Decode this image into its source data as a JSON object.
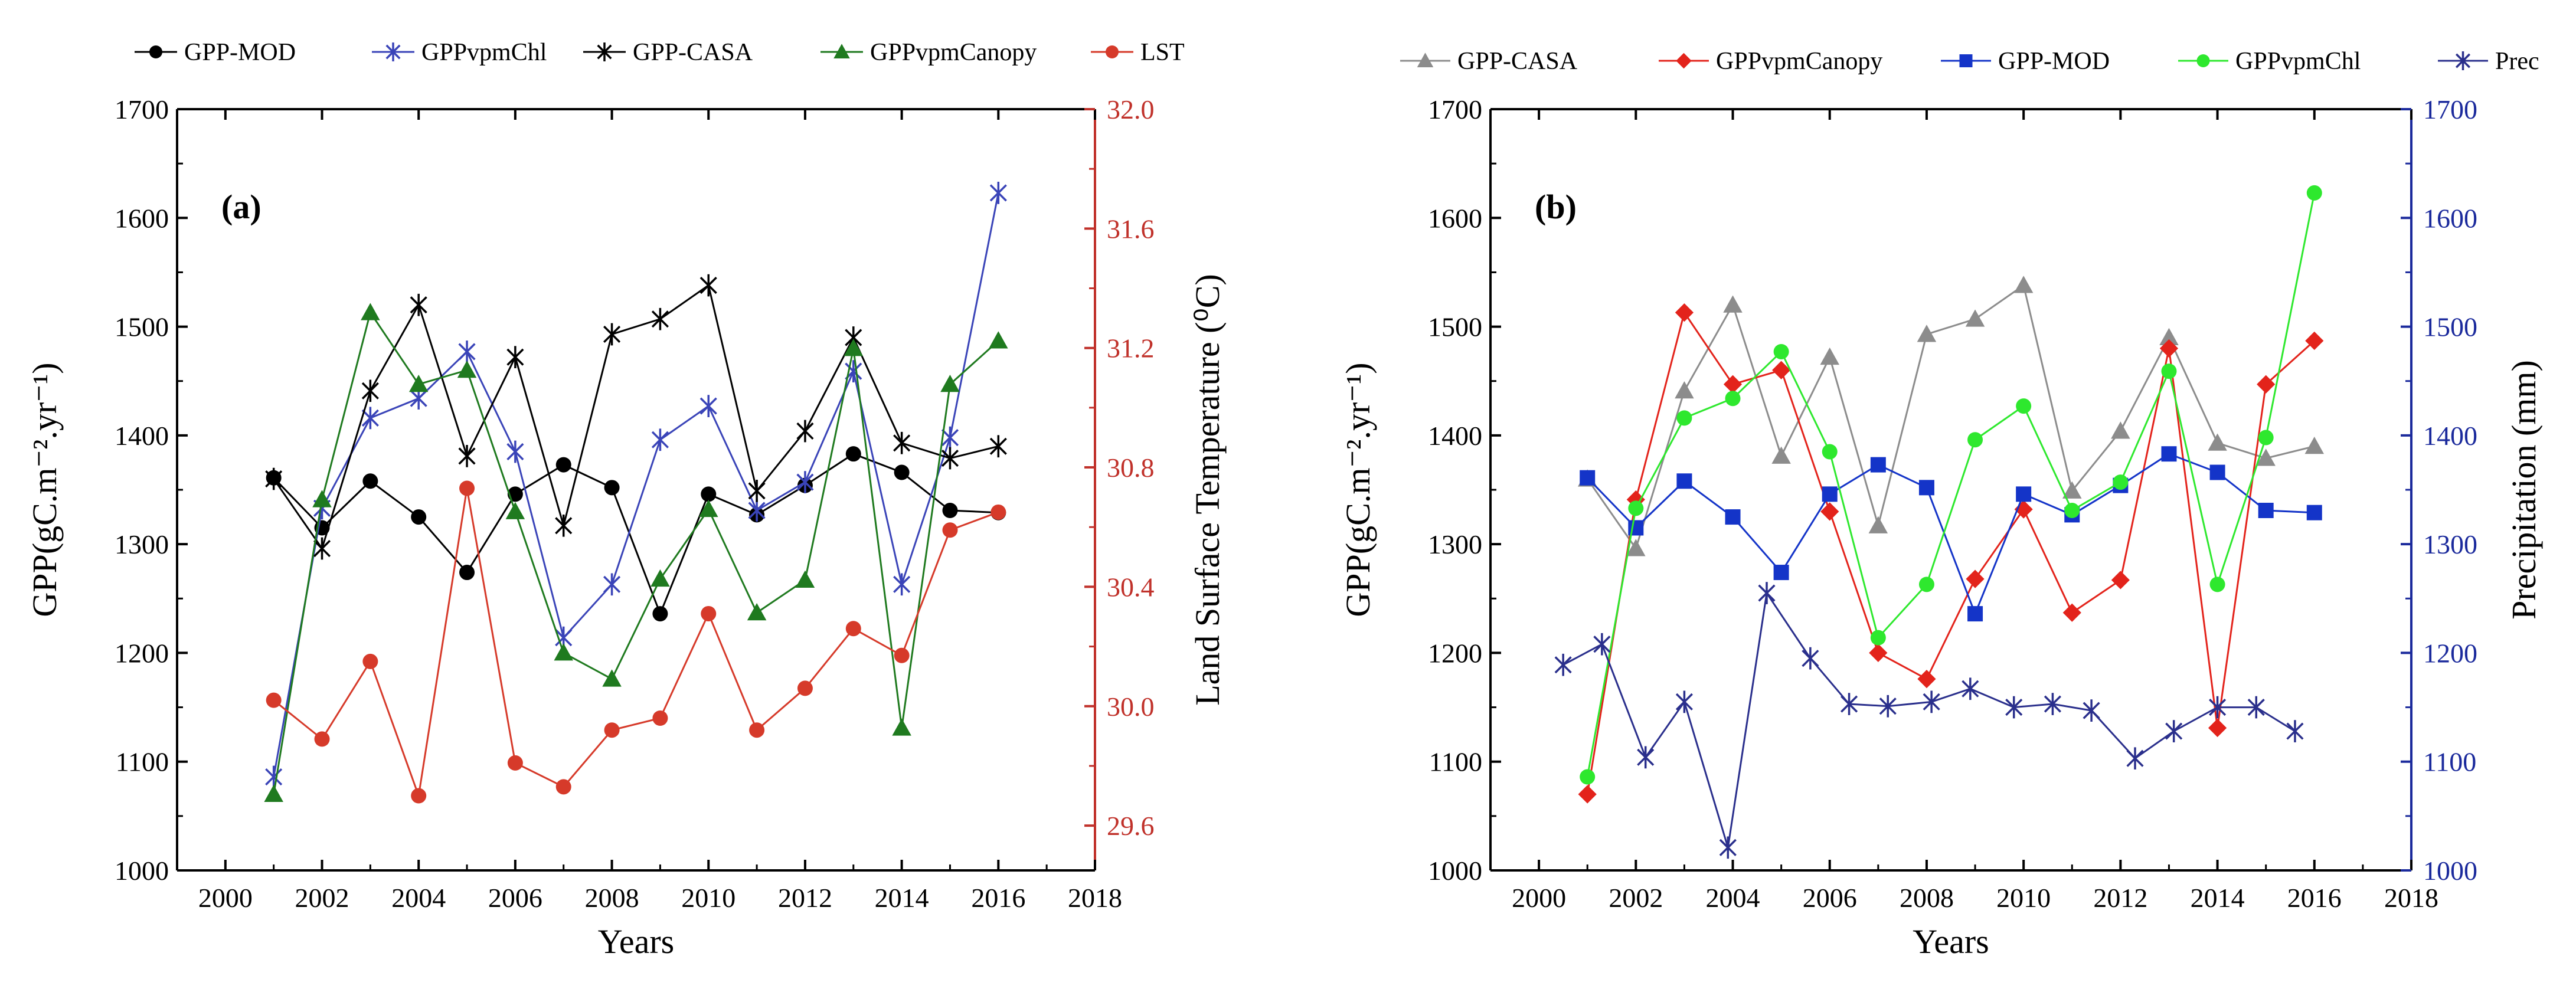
{
  "chart_data": [
    {
      "panel": "(a)",
      "type": "line",
      "xlabel": "Years",
      "ylabel_left": "GPP(gC.m⁻².yr⁻¹)",
      "ylabel_right": "Land Surface Temperature (⁰C)",
      "xlim": [
        1999,
        2018
      ],
      "xticks": [
        "2000",
        "2002",
        "2004",
        "2006",
        "2008",
        "2010",
        "2012",
        "2014",
        "2016",
        "2018"
      ],
      "ylim_left": [
        1000,
        1700
      ],
      "yticks_left": [
        "1000",
        "1100",
        "1200",
        "1300",
        "1400",
        "1500",
        "1600",
        "1700"
      ],
      "ylim_right": [
        29.45,
        32.0
      ],
      "yticks_right": [
        "29.6",
        "30.0",
        "30.4",
        "30.8",
        "31.2",
        "31.6",
        "32.0"
      ],
      "legend_position": "top",
      "series": [
        {
          "name": "GPP-MOD",
          "color": "#000000",
          "marker": "circle",
          "axis": "left",
          "x": [
            2001,
            2002,
            2003,
            2004,
            2005,
            2006,
            2007,
            2008,
            2009,
            2010,
            2011,
            2012,
            2013,
            2014,
            2015,
            2016
          ],
          "values": [
            1361,
            1315,
            1358,
            1325,
            1274,
            1346,
            1373,
            1352,
            1236,
            1346,
            1327,
            1354,
            1383,
            1366,
            1331,
            1329
          ]
        },
        {
          "name": "GPPvpmChl",
          "color": "#3a44b8",
          "marker": "asterisk",
          "axis": "left",
          "x": [
            2001,
            2002,
            2003,
            2004,
            2005,
            2006,
            2007,
            2008,
            2009,
            2010,
            2011,
            2012,
            2013,
            2014,
            2015,
            2016
          ],
          "values": [
            1086,
            1333,
            1416,
            1434,
            1477,
            1385,
            1214,
            1263,
            1396,
            1427,
            1331,
            1357,
            1459,
            1263,
            1398,
            1623
          ]
        },
        {
          "name": "GPP-CASA",
          "color": "#000000",
          "marker": "asterisk",
          "axis": "left",
          "x": [
            2001,
            2002,
            2003,
            2004,
            2005,
            2006,
            2007,
            2008,
            2009,
            2010,
            2011,
            2012,
            2013,
            2014,
            2015,
            2016
          ],
          "values": [
            1360,
            1296,
            1441,
            1520,
            1381,
            1472,
            1317,
            1493,
            1507,
            1538,
            1349,
            1404,
            1490,
            1393,
            1379,
            1390
          ]
        },
        {
          "name": "GPPvpmCanopy",
          "color": "#1f7a1f",
          "marker": "triangle",
          "axis": "left",
          "x": [
            2001,
            2002,
            2003,
            2004,
            2005,
            2006,
            2007,
            2008,
            2009,
            2010,
            2011,
            2012,
            2013,
            2014,
            2015,
            2016
          ],
          "values": [
            1070,
            1341,
            1513,
            1447,
            1460,
            1330,
            1200,
            1176,
            1268,
            1332,
            1237,
            1267,
            1480,
            1131,
            1447,
            1487
          ]
        },
        {
          "name": "LST",
          "color": "#d63a2a",
          "marker": "circle",
          "axis": "right",
          "x": [
            2001,
            2002,
            2003,
            2004,
            2005,
            2006,
            2007,
            2008,
            2009,
            2010,
            2011,
            2012,
            2013,
            2014,
            2015,
            2016
          ],
          "values": [
            30.02,
            29.89,
            30.15,
            29.7,
            30.73,
            29.81,
            29.73,
            29.92,
            29.96,
            30.31,
            29.92,
            30.06,
            30.26,
            30.17,
            30.59,
            30.65
          ]
        }
      ]
    },
    {
      "panel": "(b)",
      "type": "line",
      "xlabel": "Years",
      "ylabel_left": "GPP(gC.m⁻².yr⁻¹)",
      "ylabel_right": "Precipitation (mm)",
      "xlim": [
        1999,
        2018
      ],
      "xticks": [
        "2000",
        "2002",
        "2004",
        "2006",
        "2008",
        "2010",
        "2012",
        "2014",
        "2016",
        "2018"
      ],
      "ylim_left": [
        1000,
        1700
      ],
      "yticks_left": [
        "1000",
        "1100",
        "1200",
        "1300",
        "1400",
        "1500",
        "1600",
        "1700"
      ],
      "ylim_right": [
        1000,
        1700
      ],
      "yticks_right": [
        "1000",
        "1100",
        "1200",
        "1300",
        "1400",
        "1500",
        "1600",
        "1700"
      ],
      "legend_position": "top",
      "series": [
        {
          "name": "GPP-CASA",
          "color": "#8c8c8c",
          "marker": "triangle",
          "axis": "left",
          "x": [
            2001,
            2002,
            2003,
            2004,
            2005,
            2006,
            2007,
            2008,
            2009,
            2010,
            2011,
            2012,
            2013,
            2014,
            2015,
            2016
          ],
          "values": [
            1360,
            1296,
            1441,
            1520,
            1381,
            1472,
            1317,
            1493,
            1507,
            1538,
            1349,
            1404,
            1490,
            1393,
            1379,
            1390
          ]
        },
        {
          "name": "GPPvpmCanopy",
          "color": "#e3231b",
          "marker": "diamond",
          "axis": "left",
          "x": [
            2001,
            2002,
            2003,
            2004,
            2005,
            2006,
            2007,
            2008,
            2009,
            2010,
            2011,
            2012,
            2013,
            2014,
            2015,
            2016
          ],
          "values": [
            1070,
            1341,
            1513,
            1447,
            1460,
            1330,
            1200,
            1176,
            1268,
            1332,
            1237,
            1267,
            1480,
            1131,
            1447,
            1487
          ]
        },
        {
          "name": "GPP-MOD",
          "color": "#1434c8",
          "marker": "square",
          "axis": "left",
          "x": [
            2001,
            2002,
            2003,
            2004,
            2005,
            2006,
            2007,
            2008,
            2009,
            2010,
            2011,
            2012,
            2013,
            2014,
            2015,
            2016
          ],
          "values": [
            1361,
            1315,
            1358,
            1325,
            1274,
            1346,
            1373,
            1352,
            1236,
            1346,
            1327,
            1354,
            1383,
            1366,
            1331,
            1329
          ]
        },
        {
          "name": "GPPvpmChl",
          "color": "#2ee82e",
          "marker": "circle",
          "axis": "left",
          "x": [
            2001,
            2002,
            2003,
            2004,
            2005,
            2006,
            2007,
            2008,
            2009,
            2010,
            2011,
            2012,
            2013,
            2014,
            2015,
            2016
          ],
          "values": [
            1086,
            1333,
            1416,
            1434,
            1477,
            1385,
            1214,
            1263,
            1396,
            1427,
            1331,
            1357,
            1459,
            1263,
            1398,
            1623
          ]
        },
        {
          "name": "Prec",
          "color": "#2a2f8c",
          "marker": "asterisk",
          "axis": "right",
          "x": [
            2000.5,
            2001.3,
            2002.2,
            2003.0,
            2003.9,
            2004.7,
            2005.6,
            2006.4,
            2007.2,
            2008.1,
            2008.9,
            2009.8,
            2010.6,
            2011.4,
            2012.3,
            2013.1,
            2014.0,
            2014.8,
            2015.6
          ],
          "values": [
            1189,
            1208,
            1104,
            1155,
            1021,
            1255,
            1195,
            1153,
            1151,
            1155,
            1167,
            1150,
            1153,
            1147,
            1103,
            1128,
            1150,
            1150,
            1128
          ]
        }
      ]
    }
  ]
}
